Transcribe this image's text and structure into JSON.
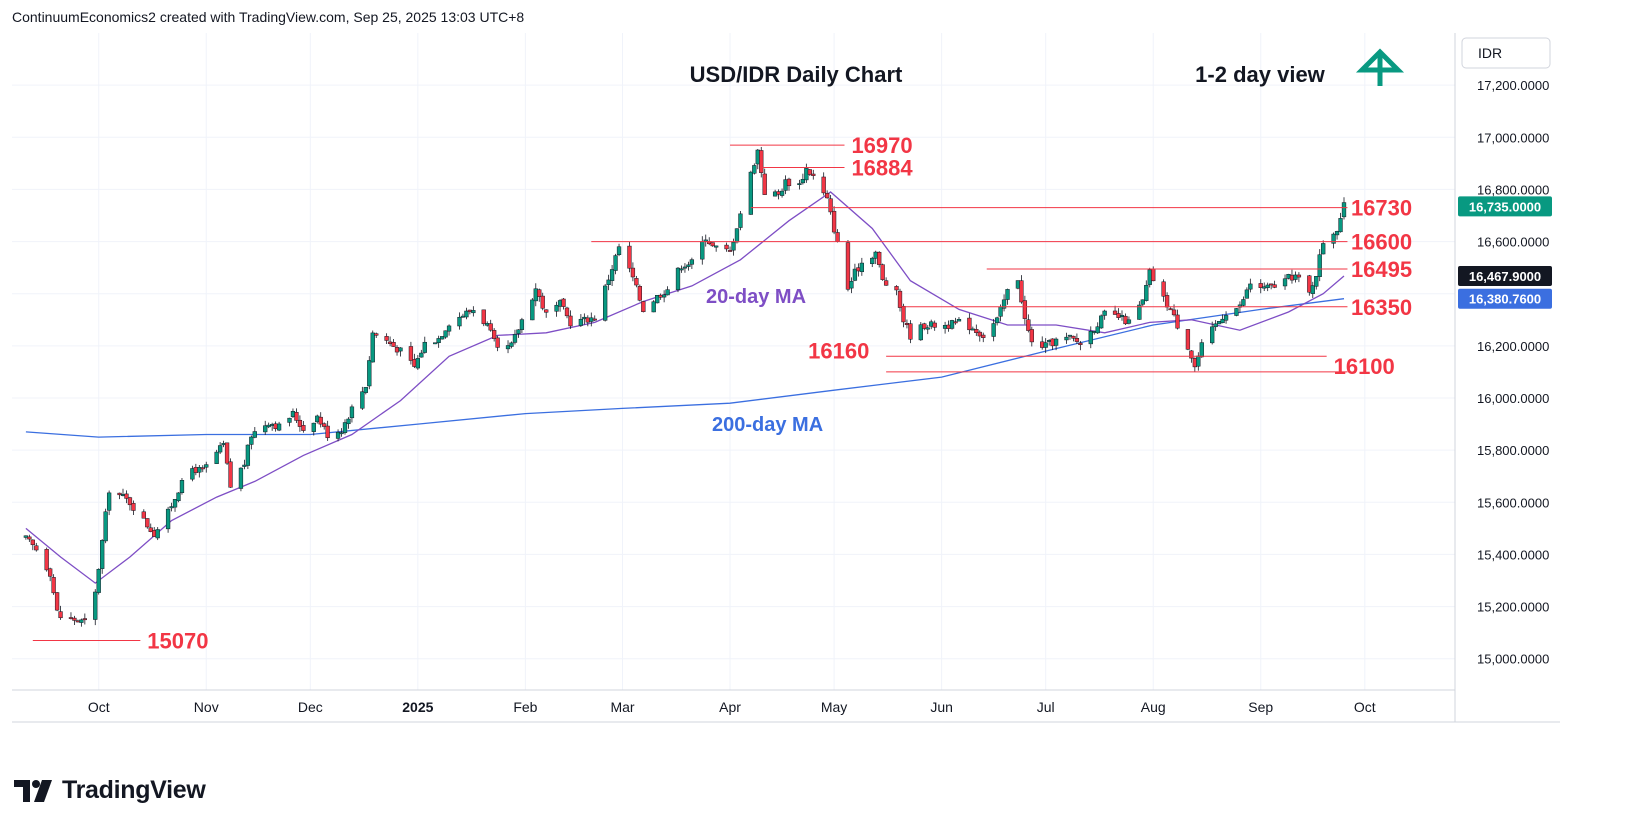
{
  "header": {
    "text": "ContinuumEconomics2 created with TradingView.com, Sep 25, 2025 13:03 UTC+8"
  },
  "footer": {
    "brand": "TradingView"
  },
  "colors": {
    "up": "#089981",
    "down": "#f23645",
    "ma20": "#7e4ec5",
    "ma200": "#3b6fe0",
    "level_line": "#f23645",
    "annotation": "#f23645",
    "grid": "#f0f3fa",
    "arrow": "#089981"
  },
  "chart_data": {
    "type": "candlestick",
    "title": "USD/IDR Daily Chart",
    "subtitle": "1-2 day view",
    "outlook_icon": "arrow-up-icon",
    "currency": "IDR",
    "ylim": [
      14880,
      17400
    ],
    "y_ticks": [
      "15,000.0000",
      "15,200.0000",
      "15,400.0000",
      "15,600.0000",
      "15,800.0000",
      "16,000.0000",
      "16,200.0000",
      "16,400.0000",
      "16,600.0000",
      "16,800.0000",
      "17,000.0000",
      "17,200.0000"
    ],
    "x_ticks": [
      "Oct",
      "Nov",
      "Dec",
      "2025",
      "Feb",
      "Mar",
      "Apr",
      "May",
      "Jun",
      "Jul",
      "Aug",
      "Sep",
      "Oct"
    ],
    "price_tags": [
      {
        "label": "16,735.0000",
        "value": 16735,
        "color": "#089981"
      },
      {
        "label": "16,467.9000",
        "value": 16467.9,
        "color": "#131722"
      },
      {
        "label": "16,380.7600",
        "value": 16380.76,
        "color": "#3b6fe0"
      }
    ],
    "levels": [
      {
        "label": "16970",
        "value": 16970
      },
      {
        "label": "16884",
        "value": 16884
      },
      {
        "label": "16730",
        "value": 16730
      },
      {
        "label": "16600",
        "value": 16600
      },
      {
        "label": "16495",
        "value": 16495
      },
      {
        "label": "16350",
        "value": 16350
      },
      {
        "label": "16160",
        "value": 16160
      },
      {
        "label": "16100",
        "value": 16100
      },
      {
        "label": "15070",
        "value": 15070
      }
    ],
    "ma_labels": {
      "ma20": "20-day MA",
      "ma200": "200-day MA"
    },
    "close_path": [
      [
        "2024-09-10",
        15460
      ],
      [
        "2024-09-13",
        15420
      ],
      [
        "2024-09-17",
        15330
      ],
      [
        "2024-09-19",
        15180
      ],
      [
        "2024-09-20",
        15160
      ],
      [
        "2024-09-24",
        15150
      ],
      [
        "2024-09-27",
        15140
      ],
      [
        "2024-09-30",
        15250
      ],
      [
        "2024-10-02",
        15450
      ],
      [
        "2024-10-04",
        15650
      ],
      [
        "2024-10-08",
        15620
      ],
      [
        "2024-10-10",
        15600
      ],
      [
        "2024-10-14",
        15530
      ],
      [
        "2024-10-17",
        15480
      ],
      [
        "2024-10-21",
        15560
      ],
      [
        "2024-10-24",
        15650
      ],
      [
        "2024-10-28",
        15730
      ],
      [
        "2024-10-31",
        15720
      ],
      [
        "2024-11-04",
        15790
      ],
      [
        "2024-11-06",
        15820
      ],
      [
        "2024-11-08",
        15660
      ],
      [
        "2024-11-12",
        15750
      ],
      [
        "2024-11-14",
        15860
      ],
      [
        "2024-11-19",
        15910
      ],
      [
        "2024-11-22",
        15890
      ],
      [
        "2024-11-26",
        15940
      ],
      [
        "2024-11-29",
        15880
      ],
      [
        "2024-12-03",
        15930
      ],
      [
        "2024-12-06",
        15860
      ],
      [
        "2024-12-10",
        15880
      ],
      [
        "2024-12-13",
        15960
      ],
      [
        "2024-12-17",
        16050
      ],
      [
        "2024-12-19",
        16250
      ],
      [
        "2024-12-23",
        16220
      ],
      [
        "2024-12-27",
        16180
      ],
      [
        "2024-12-31",
        16120
      ],
      [
        "2025-01-03",
        16210
      ],
      [
        "2025-01-07",
        16230
      ],
      [
        "2025-01-10",
        16290
      ],
      [
        "2025-01-14",
        16320
      ],
      [
        "2025-01-17",
        16340
      ],
      [
        "2025-01-21",
        16280
      ],
      [
        "2025-01-24",
        16180
      ],
      [
        "2025-01-28",
        16200
      ],
      [
        "2025-01-31",
        16300
      ],
      [
        "2025-02-04",
        16420
      ],
      [
        "2025-02-07",
        16320
      ],
      [
        "2025-02-11",
        16360
      ],
      [
        "2025-02-14",
        16290
      ],
      [
        "2025-02-18",
        16300
      ],
      [
        "2025-02-21",
        16310
      ],
      [
        "2025-02-25",
        16460
      ],
      [
        "2025-02-28",
        16580
      ],
      [
        "2025-03-04",
        16460
      ],
      [
        "2025-03-07",
        16340
      ],
      [
        "2025-03-11",
        16390
      ],
      [
        "2025-03-14",
        16420
      ],
      [
        "2025-03-18",
        16510
      ],
      [
        "2025-03-21",
        16520
      ],
      [
        "2025-03-25",
        16620
      ],
      [
        "2025-03-27",
        16580
      ],
      [
        "2025-04-01",
        16560
      ],
      [
        "2025-04-07",
        16860
      ],
      [
        "2025-04-09",
        16950
      ],
      [
        "2025-04-11",
        16790
      ],
      [
        "2025-04-15",
        16780
      ],
      [
        "2025-04-17",
        16830
      ],
      [
        "2025-04-21",
        16820
      ],
      [
        "2025-04-23",
        16880
      ],
      [
        "2025-04-25",
        16850
      ],
      [
        "2025-04-29",
        16760
      ],
      [
        "2025-05-01",
        16650
      ],
      [
        "2025-05-05",
        16420
      ],
      [
        "2025-05-07",
        16480
      ],
      [
        "2025-05-09",
        16520
      ],
      [
        "2025-05-13",
        16560
      ],
      [
        "2025-05-15",
        16450
      ],
      [
        "2025-05-19",
        16400
      ],
      [
        "2025-05-21",
        16300
      ],
      [
        "2025-05-23",
        16240
      ],
      [
        "2025-05-27",
        16280
      ],
      [
        "2025-06-03",
        16280
      ],
      [
        "2025-06-06",
        16290
      ],
      [
        "2025-06-10",
        16270
      ],
      [
        "2025-06-13",
        16240
      ],
      [
        "2025-06-17",
        16300
      ],
      [
        "2025-06-20",
        16410
      ],
      [
        "2025-06-23",
        16460
      ],
      [
        "2025-06-25",
        16300
      ],
      [
        "2025-06-27",
        16210
      ],
      [
        "2025-07-01",
        16200
      ],
      [
        "2025-07-04",
        16220
      ],
      [
        "2025-07-08",
        16230
      ],
      [
        "2025-07-11",
        16210
      ],
      [
        "2025-07-15",
        16270
      ],
      [
        "2025-07-18",
        16320
      ],
      [
        "2025-07-22",
        16310
      ],
      [
        "2025-07-25",
        16290
      ],
      [
        "2025-07-29",
        16370
      ],
      [
        "2025-07-31",
        16480
      ],
      [
        "2025-08-04",
        16380
      ],
      [
        "2025-08-06",
        16340
      ],
      [
        "2025-08-08",
        16280
      ],
      [
        "2025-08-11",
        16200
      ],
      [
        "2025-08-13",
        16120
      ],
      [
        "2025-08-15",
        16200
      ],
      [
        "2025-08-19",
        16280
      ],
      [
        "2025-08-22",
        16330
      ],
      [
        "2025-08-26",
        16350
      ],
      [
        "2025-08-29",
        16440
      ],
      [
        "2025-09-02",
        16420
      ],
      [
        "2025-09-05",
        16430
      ],
      [
        "2025-09-09",
        16460
      ],
      [
        "2025-09-11",
        16470
      ],
      [
        "2025-09-15",
        16400
      ],
      [
        "2025-09-17",
        16480
      ],
      [
        "2025-09-19",
        16600
      ],
      [
        "2025-09-23",
        16650
      ],
      [
        "2025-09-25",
        16735
      ]
    ],
    "ma20": [
      [
        "2024-09-10",
        15500
      ],
      [
        "2024-09-20",
        15390
      ],
      [
        "2024-09-30",
        15290
      ],
      [
        "2024-10-10",
        15390
      ],
      [
        "2024-10-22",
        15530
      ],
      [
        "2024-11-04",
        15620
      ],
      [
        "2024-11-15",
        15680
      ],
      [
        "2024-11-29",
        15780
      ],
      [
        "2024-12-13",
        15860
      ],
      [
        "2024-12-27",
        15990
      ],
      [
        "2025-01-10",
        16160
      ],
      [
        "2025-01-24",
        16240
      ],
      [
        "2025-02-07",
        16250
      ],
      [
        "2025-02-21",
        16290
      ],
      [
        "2025-03-07",
        16370
      ],
      [
        "2025-03-21",
        16430
      ],
      [
        "2025-04-04",
        16530
      ],
      [
        "2025-04-18",
        16680
      ],
      [
        "2025-04-30",
        16790
      ],
      [
        "2025-05-12",
        16650
      ],
      [
        "2025-05-23",
        16450
      ],
      [
        "2025-06-06",
        16340
      ],
      [
        "2025-06-20",
        16280
      ],
      [
        "2025-07-04",
        16280
      ],
      [
        "2025-07-18",
        16250
      ],
      [
        "2025-07-31",
        16290
      ],
      [
        "2025-08-12",
        16300
      ],
      [
        "2025-08-26",
        16260
      ],
      [
        "2025-09-09",
        16330
      ],
      [
        "2025-09-19",
        16400
      ],
      [
        "2025-09-25",
        16468
      ]
    ],
    "ma200": [
      [
        "2024-09-10",
        15870
      ],
      [
        "2024-10-01",
        15850
      ],
      [
        "2024-11-01",
        15860
      ],
      [
        "2024-12-01",
        15860
      ],
      [
        "2025-01-01",
        15900
      ],
      [
        "2025-02-01",
        15940
      ],
      [
        "2025-03-01",
        15960
      ],
      [
        "2025-04-01",
        15980
      ],
      [
        "2025-05-01",
        16030
      ],
      [
        "2025-06-01",
        16080
      ],
      [
        "2025-07-01",
        16180
      ],
      [
        "2025-08-01",
        16280
      ],
      [
        "2025-09-01",
        16340
      ],
      [
        "2025-09-25",
        16381
      ]
    ]
  }
}
